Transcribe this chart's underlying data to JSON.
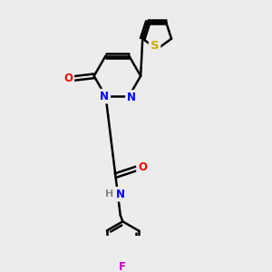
{
  "bg_color": "#ececec",
  "bond_color": "#000000",
  "bond_width": 1.8,
  "atom_colors": {
    "N": "#0000ff",
    "O": "#ff0000",
    "S": "#ccaa00",
    "F": "#cc00cc",
    "H": "#888888",
    "C": "#000000"
  },
  "font_size": 8.5,
  "figsize": [
    3.0,
    3.0
  ],
  "dpi": 100
}
